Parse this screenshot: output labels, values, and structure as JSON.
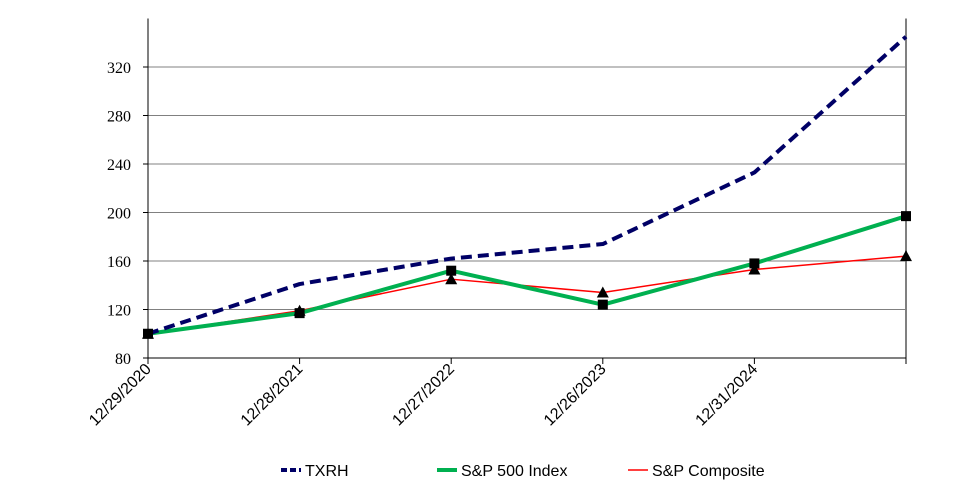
{
  "chart_data": {
    "type": "line",
    "title": "",
    "xlabel": "",
    "ylabel": "",
    "categories": [
      "12/29/2020",
      "12/28/2021",
      "12/27/2022",
      "12/26/2023",
      "12/31/2024",
      ""
    ],
    "ylim": [
      80,
      360
    ],
    "yticks": [
      80,
      120,
      160,
      200,
      240,
      280,
      320
    ],
    "grid": true,
    "legend_position": "bottom",
    "series": [
      {
        "name": "TXRH",
        "values": [
          100,
          141,
          162,
          174,
          233,
          345
        ],
        "color": "#000066",
        "style": "dashed",
        "marker": "none"
      },
      {
        "name": "S&P 500 Index",
        "values": [
          100,
          117,
          152,
          124,
          158,
          197
        ],
        "color": "#00b050",
        "style": "solid",
        "marker": "square"
      },
      {
        "name": "S&P Composite",
        "values": [
          100,
          119,
          145,
          134,
          153,
          164
        ],
        "color": "#ff0000",
        "style": "solid",
        "marker": "triangle"
      }
    ]
  }
}
